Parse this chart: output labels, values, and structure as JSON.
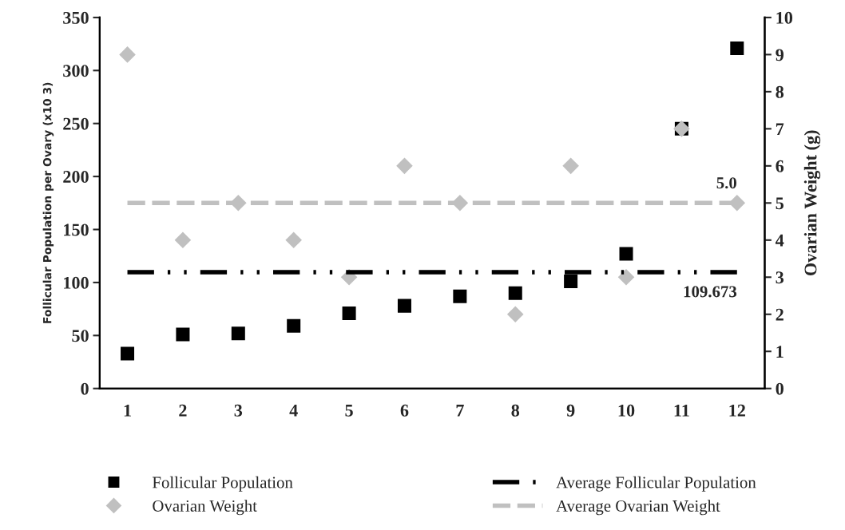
{
  "chart_data": {
    "type": "scatter",
    "categories": [
      "1",
      "2",
      "3",
      "4",
      "5",
      "6",
      "7",
      "8",
      "9",
      "10",
      "11",
      "12"
    ],
    "ylabel": "Follicular Population per Ovary (x10 3)",
    "y2label": "Ovarian Weight (g)",
    "ylim": [
      0,
      350
    ],
    "yticks": [
      0,
      50,
      100,
      150,
      200,
      250,
      300,
      350
    ],
    "y2lim": [
      0,
      10
    ],
    "y2ticks": [
      0,
      1,
      2,
      3,
      4,
      5,
      6,
      7,
      8,
      9,
      10
    ],
    "grid": false,
    "legend": "bottom",
    "series": [
      {
        "name": "Follicular Population",
        "marker": "square",
        "color": "#000000",
        "values": [
          33,
          51,
          52,
          59,
          71,
          78,
          87,
          90,
          101,
          127,
          245,
          321
        ]
      },
      {
        "name": "Average Follicular Population",
        "type": "line",
        "line_style": "dashdotdot",
        "color": "#000000",
        "values": [
          109.673,
          109.673,
          109.673,
          109.673,
          109.673,
          109.673,
          109.673,
          109.673,
          109.673,
          109.673,
          109.673,
          109.673
        ],
        "value_labels": [
          null,
          null,
          null,
          null,
          null,
          null,
          null,
          null,
          null,
          null,
          null,
          "109.673"
        ]
      },
      {
        "name": "Ovarian Weight",
        "marker": "diamond",
        "color": "#c0c0c0",
        "axis": "y2",
        "values": [
          9,
          4,
          5,
          4,
          3,
          6,
          5,
          2,
          6,
          3,
          7,
          5
        ]
      },
      {
        "name": "Average Ovarian Weight",
        "type": "line",
        "line_style": "dashed",
        "color": "#c0c0c0",
        "axis": "y2",
        "values": [
          5.0,
          5.0,
          5.0,
          5.0,
          5.0,
          5.0,
          5.0,
          5.0,
          5.0,
          5.0,
          5.0,
          5.0
        ],
        "value_labels": [
          null,
          null,
          null,
          null,
          null,
          null,
          null,
          null,
          null,
          null,
          null,
          "5.0"
        ]
      }
    ]
  }
}
